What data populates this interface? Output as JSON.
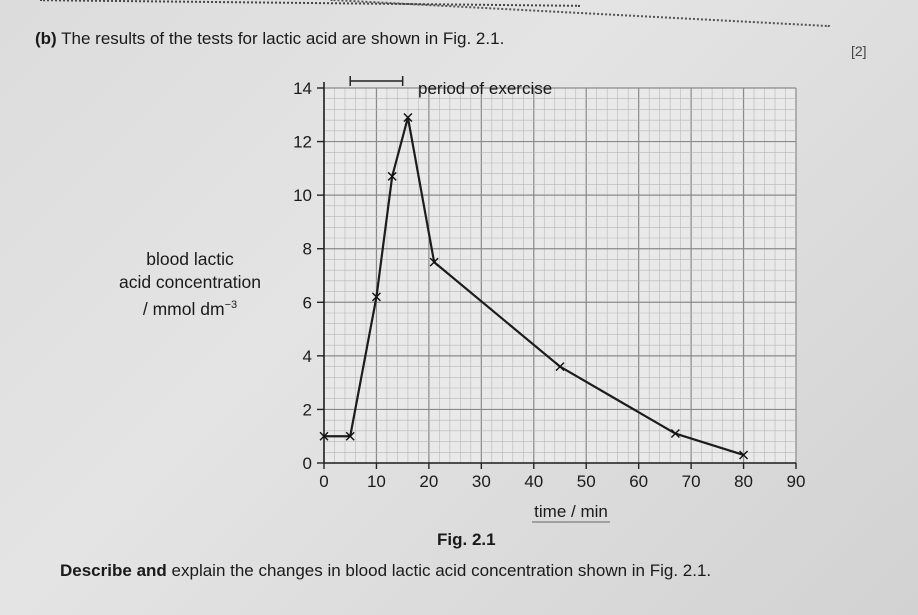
{
  "question": {
    "part": "(b)",
    "text": "The results of the tests for lactic acid are shown in Fig. 2.1."
  },
  "previous_marks": "[2]",
  "figure": {
    "ylabel_line1": "blood lactic",
    "ylabel_line2": "acid concentration",
    "ylabel_unit": "/ mmol dm",
    "ylabel_unit_exp": "−3",
    "caption": "Fig. 2.1",
    "annotation": "period of exercise"
  },
  "instruction": {
    "verb1": "Describe",
    "and": "and",
    "rest": "explain the changes in blood lactic acid concentration shown in Fig. 2.1."
  },
  "chart_data": {
    "type": "line",
    "xlabel": "time / min",
    "ylabel": "blood lactic acid concentration / mmol dm−3",
    "xlim": [
      0,
      90
    ],
    "ylim": [
      0,
      14
    ],
    "x_ticks": [
      0,
      10,
      20,
      30,
      40,
      50,
      60,
      70,
      80,
      90
    ],
    "y_ticks": [
      0,
      2,
      4,
      6,
      8,
      10,
      12,
      14
    ],
    "grid": true,
    "annotation": {
      "text": "period of exercise",
      "x_start": 5,
      "x_end": 15
    },
    "series": [
      {
        "points": [
          {
            "x": 0,
            "y": 1.0
          },
          {
            "x": 5,
            "y": 1.0
          },
          {
            "x": 10,
            "y": 6.2
          },
          {
            "x": 13,
            "y": 10.7
          },
          {
            "x": 16,
            "y": 12.9
          },
          {
            "x": 21,
            "y": 7.5
          },
          {
            "x": 45,
            "y": 3.6
          },
          {
            "x": 67,
            "y": 1.1
          },
          {
            "x": 80,
            "y": 0.3
          }
        ]
      }
    ]
  }
}
